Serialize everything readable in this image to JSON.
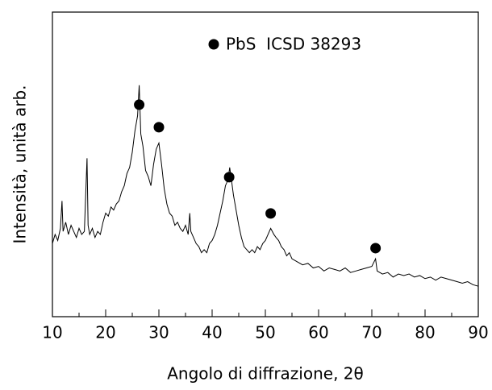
{
  "chart_data": {
    "type": "line",
    "x_label": "Angolo di diffrazione, 2θ",
    "y_label": "Intensità, unità arb.",
    "xlim": [
      10,
      90
    ],
    "xticks": [
      10,
      20,
      30,
      40,
      50,
      60,
      70,
      80,
      90
    ],
    "xminorticks": [
      15,
      25,
      35,
      45,
      55,
      65,
      75,
      85
    ],
    "ylim": [
      0,
      100
    ],
    "series": [
      {
        "type": "line",
        "color": "#000000",
        "x": [
          10,
          10.5,
          11,
          11.5,
          11.8,
          12,
          12.5,
          13,
          13.5,
          14,
          14.5,
          15,
          15.5,
          16,
          16.5,
          16.7,
          17,
          17.5,
          18,
          18.5,
          19,
          19.5,
          20,
          20.5,
          21,
          21.5,
          22,
          22.5,
          23,
          23.5,
          24,
          24.5,
          25,
          25.5,
          26,
          26.3,
          26.6,
          27,
          27.5,
          28,
          28.5,
          29,
          29.5,
          30,
          30.5,
          31,
          31.5,
          32,
          32.5,
          33,
          33.5,
          34,
          34.5,
          35,
          35.5,
          35.8,
          36,
          36.5,
          37,
          37.5,
          38,
          38.5,
          39,
          39.5,
          40,
          40.5,
          41,
          41.5,
          42,
          42.5,
          43,
          43.3,
          43.7,
          44,
          44.5,
          45,
          45.5,
          46,
          46.5,
          47,
          47.5,
          48,
          48.5,
          49,
          49.5,
          50,
          50.5,
          51,
          51.3,
          51.6,
          52,
          52.5,
          53,
          53.5,
          54,
          54.5,
          55,
          56,
          57,
          58,
          59,
          60,
          61,
          62,
          63,
          64,
          65,
          66,
          67,
          68,
          69,
          70,
          70.7,
          71,
          72,
          73,
          74,
          75,
          76,
          77,
          78,
          79,
          80,
          81,
          82,
          83,
          84,
          85,
          86,
          87,
          88,
          89,
          90
        ],
        "values": [
          24,
          27,
          25,
          29,
          38,
          28,
          31,
          27,
          30,
          28,
          26,
          29,
          27,
          28,
          52,
          30,
          27,
          29,
          26,
          28,
          27,
          31,
          34,
          33,
          36,
          35,
          37,
          38,
          41,
          43,
          47,
          49,
          54,
          61,
          66,
          76,
          60,
          56,
          48,
          46,
          43,
          50,
          55,
          57,
          50,
          42,
          37,
          34,
          33,
          30,
          31,
          29,
          28,
          30,
          27,
          34,
          28,
          26,
          24,
          23,
          21,
          22,
          21,
          24,
          25,
          27,
          30,
          34,
          38,
          43,
          45,
          49,
          44,
          40,
          35,
          30,
          26,
          23,
          22,
          21,
          22,
          21,
          23,
          22,
          24,
          25,
          27,
          29,
          28,
          27,
          26,
          25,
          23,
          22,
          20,
          21,
          19,
          18,
          17,
          17.5,
          16,
          16.5,
          15,
          16,
          15.5,
          15,
          16,
          14.5,
          15,
          15.5,
          16,
          16.5,
          19,
          15,
          14,
          14.5,
          13,
          14,
          13.5,
          14,
          13,
          13.5,
          12.5,
          13,
          12,
          13,
          12.5,
          12,
          11.5,
          11,
          11.5,
          10.5,
          10
        ]
      },
      {
        "type": "scatter",
        "name": "PbS  ICSD 38293",
        "color": "#000000",
        "x": [
          26.3,
          30,
          43.2,
          51,
          70.7
        ],
        "values": [
          69.6,
          62.2,
          45.8,
          33.9,
          22.5
        ]
      }
    ]
  }
}
